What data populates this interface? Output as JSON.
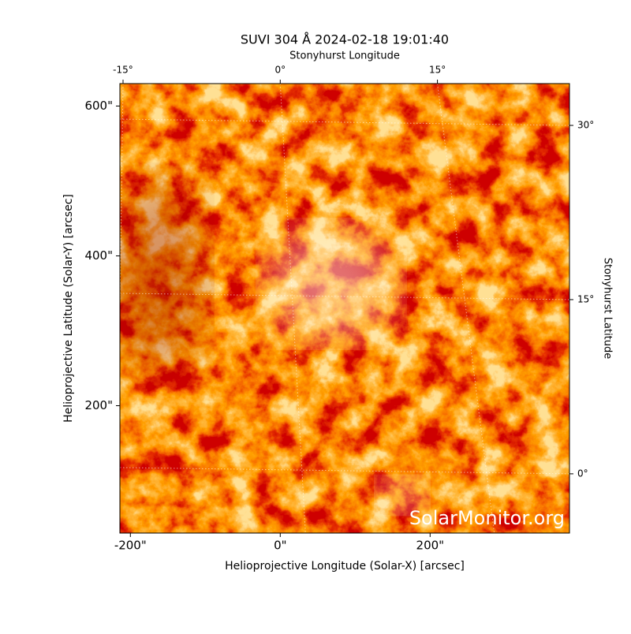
{
  "chart_data": {
    "type": "image",
    "title": "SUVI 304 Å 2024-02-18 19:01:40",
    "watermark": "SolarMonitor.org",
    "xlabel": "Helioprojective Longitude (Solar-X) [arcsec]",
    "ylabel": "Helioprojective Latitude (Solar-Y) [arcsec]",
    "x2label": "Stonyhurst Longitude",
    "y2label": "Stonyhurst Latitude",
    "xlim": [
      -214,
      386
    ],
    "ylim": [
      30,
      630
    ],
    "xticks": [
      {
        "value": -200,
        "label": "-200\""
      },
      {
        "value": 0,
        "label": "0\""
      },
      {
        "value": 200,
        "label": "200\""
      }
    ],
    "yticks": [
      {
        "value": 200,
        "label": "200\""
      },
      {
        "value": 400,
        "label": "400\""
      },
      {
        "value": 600,
        "label": "600\""
      }
    ],
    "x2lim": [
      -15.3,
      27.6
    ],
    "x2ticks": [
      {
        "value": -15,
        "label": "-15°"
      },
      {
        "value": 0,
        "label": "0°"
      },
      {
        "value": 15,
        "label": "15°"
      }
    ],
    "y2lim": [
      -5.1,
      33.6
    ],
    "y2ticks": [
      {
        "value": 0,
        "label": "0°"
      },
      {
        "value": 15,
        "label": "15°"
      },
      {
        "value": 30,
        "label": "30°"
      }
    ],
    "grid": true
  }
}
